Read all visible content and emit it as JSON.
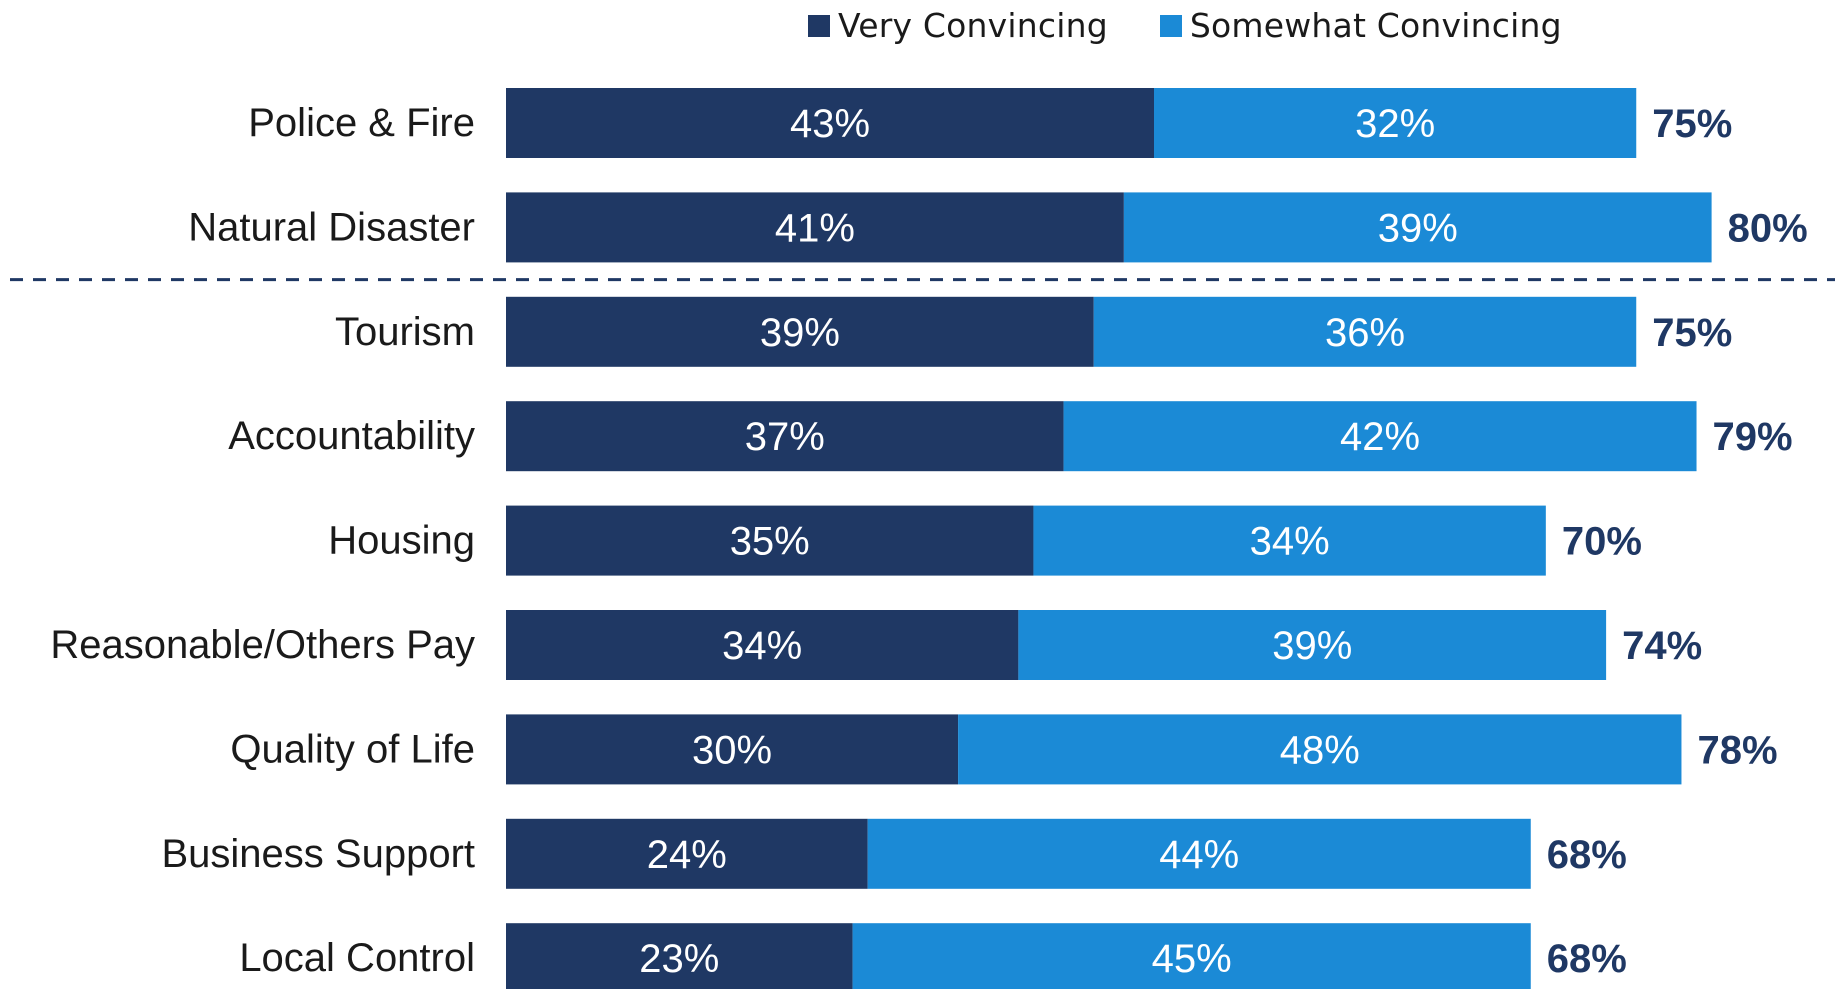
{
  "chart_data": {
    "type": "bar",
    "orientation": "horizontal",
    "stacked": true,
    "categories": [
      "Police & Fire",
      "Natural Disaster",
      "Tourism",
      "Accountability",
      "Housing",
      "Reasonable/Others Pay",
      "Quality of Life",
      "Business Support",
      "Local Control"
    ],
    "series": [
      {
        "name": "Very Convincing",
        "values": [
          43,
          41,
          39,
          37,
          35,
          34,
          30,
          24,
          23
        ],
        "color": "#1f3864"
      },
      {
        "name": "Somewhat Convincing",
        "values": [
          32,
          39,
          36,
          42,
          34,
          39,
          48,
          44,
          45
        ],
        "color": "#1b8ad6"
      }
    ],
    "totals": [
      75,
      80,
      75,
      79,
      70,
      74,
      78,
      68,
      68
    ],
    "value_suffix": "%",
    "total_label_color": "#1f3864",
    "separator_after_category": "Natural Disaster",
    "legend_position": "top",
    "grid": false,
    "xlim": [
      0,
      100
    ]
  }
}
